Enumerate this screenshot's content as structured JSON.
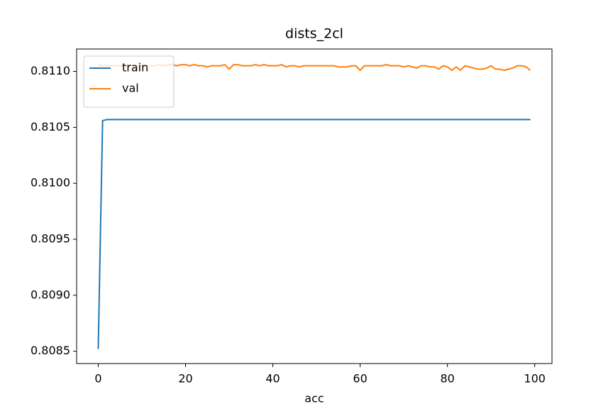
{
  "chart_data": {
    "type": "line",
    "title": "dists_2cl",
    "x_label": "acc",
    "x": [
      0,
      1,
      2,
      3,
      4,
      5,
      6,
      7,
      8,
      9,
      10,
      11,
      12,
      13,
      14,
      15,
      16,
      17,
      18,
      19,
      20,
      21,
      22,
      23,
      24,
      25,
      26,
      27,
      28,
      29,
      30,
      31,
      32,
      33,
      34,
      35,
      36,
      37,
      38,
      39,
      40,
      41,
      42,
      43,
      44,
      45,
      46,
      47,
      48,
      49,
      50,
      51,
      52,
      53,
      54,
      55,
      56,
      57,
      58,
      59,
      60,
      61,
      62,
      63,
      64,
      65,
      66,
      67,
      68,
      69,
      70,
      71,
      72,
      73,
      74,
      75,
      76,
      77,
      78,
      79,
      80,
      81,
      82,
      83,
      84,
      85,
      86,
      87,
      88,
      89,
      90,
      91,
      92,
      93,
      94,
      95,
      96,
      97,
      98,
      99
    ],
    "series": [
      {
        "name": "train",
        "color": "#1f77b4",
        "values": [
          0.80852,
          0.81056,
          0.81057,
          0.81057,
          0.81057,
          0.81057,
          0.81057,
          0.81057,
          0.81057,
          0.81057,
          0.81057,
          0.81057,
          0.81057,
          0.81057,
          0.81057,
          0.81057,
          0.81057,
          0.81057,
          0.81057,
          0.81057,
          0.81057,
          0.81057,
          0.81057,
          0.81057,
          0.81057,
          0.81057,
          0.81057,
          0.81057,
          0.81057,
          0.81057,
          0.81057,
          0.81057,
          0.81057,
          0.81057,
          0.81057,
          0.81057,
          0.81057,
          0.81057,
          0.81057,
          0.81057,
          0.81057,
          0.81057,
          0.81057,
          0.81057,
          0.81057,
          0.81057,
          0.81057,
          0.81057,
          0.81057,
          0.81057,
          0.81057,
          0.81057,
          0.81057,
          0.81057,
          0.81057,
          0.81057,
          0.81057,
          0.81057,
          0.81057,
          0.81057,
          0.81057,
          0.81057,
          0.81057,
          0.81057,
          0.81057,
          0.81057,
          0.81057,
          0.81057,
          0.81057,
          0.81057,
          0.81057,
          0.81057,
          0.81057,
          0.81057,
          0.81057,
          0.81057,
          0.81057,
          0.81057,
          0.81057,
          0.81057,
          0.81057,
          0.81057,
          0.81057,
          0.81057,
          0.81057,
          0.81057,
          0.81057,
          0.81057,
          0.81057,
          0.81057,
          0.81057,
          0.81057,
          0.81057,
          0.81057,
          0.81057,
          0.81057,
          0.81057,
          0.81057,
          0.81057,
          0.81057
        ]
      },
      {
        "name": "val",
        "color": "#ff7f0e",
        "values": [
          0.81106,
          0.81105,
          0.81105,
          0.81105,
          0.81105,
          0.81105,
          0.81105,
          0.81106,
          0.81105,
          0.81105,
          0.81105,
          0.81105,
          0.81105,
          0.81105,
          0.81106,
          0.81105,
          0.81106,
          0.81106,
          0.81105,
          0.81106,
          0.81106,
          0.81105,
          0.81106,
          0.81105,
          0.81105,
          0.81104,
          0.81105,
          0.81105,
          0.81105,
          0.81106,
          0.81102,
          0.81106,
          0.81106,
          0.81105,
          0.81105,
          0.81105,
          0.81106,
          0.81105,
          0.81106,
          0.81105,
          0.81105,
          0.81105,
          0.81106,
          0.81104,
          0.81105,
          0.81105,
          0.81104,
          0.81105,
          0.81105,
          0.81105,
          0.81105,
          0.81105,
          0.81105,
          0.81105,
          0.81105,
          0.81104,
          0.81104,
          0.81104,
          0.81105,
          0.81105,
          0.81101,
          0.81105,
          0.81105,
          0.81105,
          0.81105,
          0.81105,
          0.81106,
          0.81105,
          0.81105,
          0.81105,
          0.81104,
          0.81105,
          0.81104,
          0.81103,
          0.81105,
          0.81105,
          0.81104,
          0.81104,
          0.81102,
          0.81105,
          0.81104,
          0.81101,
          0.81104,
          0.81101,
          0.81105,
          0.81104,
          0.81103,
          0.81102,
          0.81102,
          0.81103,
          0.81105,
          0.81102,
          0.81102,
          0.81101,
          0.81102,
          0.81103,
          0.81105,
          0.81105,
          0.81104,
          0.81101
        ]
      }
    ],
    "xlim": [
      -4.95,
      103.95
    ],
    "xticks": [
      0,
      20,
      40,
      60,
      80,
      100
    ],
    "ylim": [
      0.80839,
      0.8112
    ],
    "yticks": [
      0.8085,
      {
        "value": 0.809,
        "label": "0.8090"
      },
      0.8095,
      {
        "value": 0.81,
        "label": "0.8100"
      },
      0.8105,
      {
        "value": 0.811,
        "label": "0.8110"
      }
    ],
    "legend": "upper left",
    "grid": false
  }
}
